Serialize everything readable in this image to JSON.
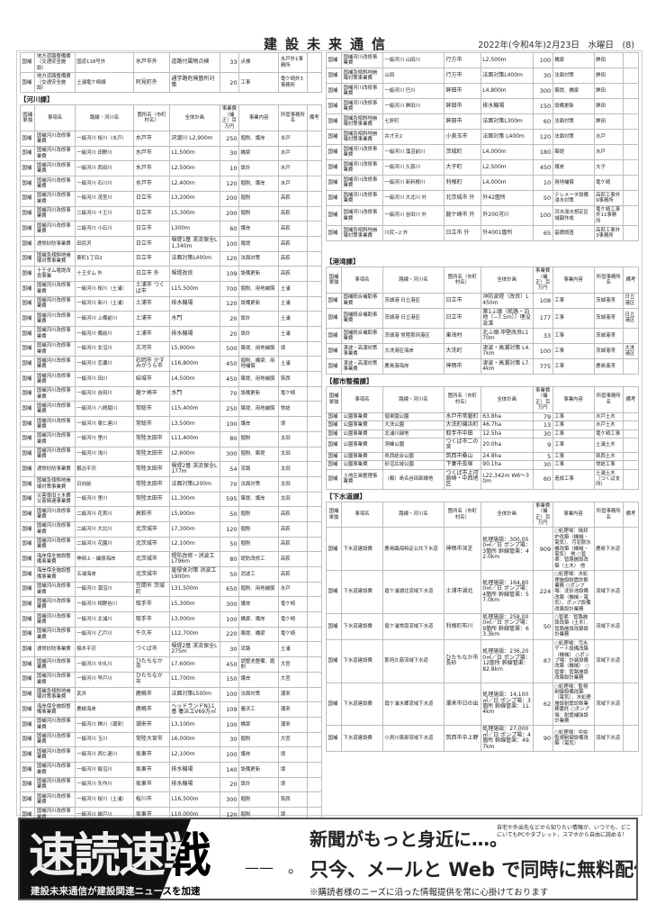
{
  "header": {
    "masthead": "建設未来通信",
    "dateline": "2022年(令和4年)2月23日　水曜日　(8)"
  },
  "columns": [
    "国補単独",
    "事項名",
    "路線・河川名",
    "箇所名（市町村名）",
    "全体計画",
    "事業費（補正）百万円",
    "事業内容",
    "所管事務所名",
    "備考"
  ],
  "left": {
    "road_rows": [
      [
        "国補",
        "地方道路整備費（交通安全施設）",
        "国道118号外",
        "水戸市外",
        "道路付属物点検",
        "33",
        "点検",
        "水戸外1事務所",
        ""
      ],
      [
        "国補",
        "地方道路整備費（交通安全施設）",
        "土浦竜ケ崎線",
        "阿見町外",
        "通学路危険箇所対策",
        "20",
        "工事",
        "竜ケ崎外3事務所",
        ""
      ]
    ],
    "river_title": "【河川課】",
    "river_rows": [
      [
        "国補",
        "国補河川改修事業費",
        "一級河川 桜川（水戸）",
        "水戸市",
        "沢渡川 L2,900m",
        "250",
        "掘削、護岸",
        "水戸",
        ""
      ],
      [
        "国補",
        "国補河川改修事業費",
        "一級河川 田野川",
        "水戸市",
        "L1,500m",
        "30",
        "橋梁",
        "水戸",
        ""
      ],
      [
        "国補",
        "国補河川改修事業費",
        "一級河川 西田川",
        "水戸市",
        "L2,500m",
        "10",
        "設計",
        "水戸",
        ""
      ],
      [
        "国補",
        "国補河川改修事業費",
        "一級河川 石川川",
        "水戸市",
        "L2,400m",
        "120",
        "掘削、護岸",
        "水戸",
        ""
      ],
      [
        "国補",
        "国補河川改修事業費",
        "一級河川 茂宮川",
        "日立市",
        "L3,200m",
        "200",
        "掘削",
        "高萩",
        ""
      ],
      [
        "国補",
        "国補河川改修事業費",
        "二級河川 十王川",
        "日立市",
        "L5,300m",
        "200",
        "掘削",
        "高萩",
        ""
      ],
      [
        "国補",
        "国補河川改修事業費",
        "二級河川 小石川",
        "日立市",
        "L300m",
        "60",
        "護岸",
        "高萩",
        ""
      ],
      [
        "国補",
        "通常砂防事業費",
        "田尻沢",
        "日立市",
        "堰堤1基 渓流保全L1,340m",
        "100",
        "堰堤",
        "高萩",
        ""
      ],
      [
        "国補",
        "国補急傾斜地崩壊対策事業費",
        "東町1丁目2",
        "日立市",
        "法面対策L400m",
        "120",
        "法面対策",
        "高萩",
        ""
      ],
      [
        "国補",
        "十王ダム堰堤改良事業",
        "十王ダム 外",
        "日立市 外",
        "堰堤改良",
        "109",
        "設備更新",
        "高萩",
        ""
      ],
      [
        "国補",
        "国補河川改修事業費",
        "一級河川 桜川（土浦）",
        "土浦市 つくば市",
        "L15,500m",
        "700",
        "掘削、用地補償",
        "土浦",
        ""
      ],
      [
        "国補",
        "国補河川改修事業費",
        "一級河川 新川（土浦）",
        "土浦市",
        "排水機場",
        "120",
        "設備更新",
        "土浦",
        ""
      ],
      [
        "国補",
        "国補河川改修事業費",
        "一級河川 上備前川",
        "土浦市",
        "水門",
        "20",
        "設計",
        "土浦",
        ""
      ],
      [
        "国補",
        "国補河川改修事業費",
        "一級河川 備前川",
        "土浦市",
        "排水機場",
        "20",
        "設計",
        "土浦",
        ""
      ],
      [
        "国補",
        "国補河川改修事業費",
        "一級河川 女沼川",
        "古河市",
        "L5,900m",
        "500",
        "築堤、用地補償",
        "境",
        ""
      ],
      [
        "国補",
        "国補河川改修事業費",
        "一級河川 恋瀬川",
        "石岡市 かすみがうら市",
        "L16,800m",
        "450",
        "掘削、橋梁、用地補償",
        "土浦",
        ""
      ],
      [
        "国補",
        "国補河川改修事業費",
        "一級河川 田川",
        "結城市",
        "L4,500m",
        "450",
        "築堤、用地補償",
        "筑西",
        ""
      ],
      [
        "国補",
        "国補河川改修事業費",
        "一級河川 谷田川",
        "龍ケ崎市",
        "水門",
        "70",
        "設備更新",
        "竜ケ崎",
        ""
      ],
      [
        "国補",
        "国補河川改修事業費",
        "一級河川 八間堀川",
        "常総市",
        "L15,400m",
        "250",
        "築堤、用地補償",
        "常総",
        ""
      ],
      [
        "国補",
        "国補河川改修事業費",
        "一級河川 東仁連川",
        "常総市",
        "L3,500m",
        "100",
        "護岸",
        "境",
        ""
      ],
      [
        "国補",
        "国補河川改修事業費",
        "一級河川 里川",
        "常陸太田市",
        "L11,400m",
        "80",
        "掘削",
        "太田",
        ""
      ],
      [
        "国補",
        "国補河川改修事業費",
        "一級河川 浅川",
        "常陸太田市",
        "L2,600m",
        "300",
        "掘削、築堤",
        "太田",
        ""
      ],
      [
        "国補",
        "通常砂防事業費",
        "鍛冶平沢",
        "常陸太田市",
        "堰堤2基 渓流保全L177m",
        "54",
        "流路",
        "太田",
        ""
      ],
      [
        "国補",
        "国補急傾斜地崩壊対策事業費",
        "日向前",
        "常陸太田市",
        "法面対策L200m",
        "70",
        "法面対策",
        "太田",
        ""
      ],
      [
        "国補",
        "災害復旧土木費 災害関連事業費",
        "一級河川 里川",
        "常陸太田市",
        "L1,300m",
        "595",
        "築堤、護岸",
        "太田",
        ""
      ],
      [
        "国補",
        "国補河川改修事業費",
        "二級河川 花貫川",
        "高萩市",
        "L5,900m",
        "50",
        "掘削",
        "高萩",
        ""
      ],
      [
        "国補",
        "国補河川改修事業費",
        "二級河川 大北川",
        "北茨城市",
        "L7,300m",
        "120",
        "掘削",
        "高萩",
        ""
      ],
      [
        "国補",
        "国補河川改修事業費",
        "二級河川 花園川",
        "北茨城市",
        "L2,100m",
        "50",
        "掘削",
        "高萩",
        ""
      ],
      [
        "国補",
        "海岸保全施設整備事業費",
        "神岡上・磯原海岸",
        "北茨城市",
        "堤防改修・消波工 L796m",
        "80",
        "堤防改修工",
        "高萩",
        ""
      ],
      [
        "国補",
        "海岸保全施設整備事業費",
        "五浦海岸",
        "北茨城市",
        "崖侵食対策 消波工L900m",
        "50",
        "消波工",
        "高萩",
        ""
      ],
      [
        "国補",
        "国補河川改修事業費",
        "一級河川 涸沼川",
        "笠間市 茨城町",
        "L31,500m",
        "650",
        "掘削、用地補償",
        "水戸",
        ""
      ],
      [
        "国補",
        "国補河川改修事業費",
        "一級河川 相野谷川",
        "取手市",
        "L5,300m",
        "300",
        "護岸",
        "竜ケ崎",
        ""
      ],
      [
        "国補",
        "国補河川改修事業費",
        "一級河川 北浦川",
        "取手市",
        "L3,000m",
        "100",
        "橋梁、護岸",
        "竜ケ崎",
        ""
      ],
      [
        "国補",
        "国補河川改修事業費",
        "一級河川 乙戸川",
        "牛久市",
        "L12,700m",
        "220",
        "築堤、橋梁",
        "竜ケ崎",
        ""
      ],
      [
        "国補",
        "通常砂防事業費",
        "稲木平沢",
        "つくば市",
        "堰堤2基 渓流保全L275m",
        "30",
        "流路",
        "土浦",
        ""
      ],
      [
        "国補",
        "国補河川改修事業費",
        "一級河川 中丸川",
        "ひたちなか市",
        "L7,600m",
        "450",
        "調整池整備、掘削",
        "大宮",
        ""
      ],
      [
        "国補",
        "国補河川改修事業費",
        "一級河川 早戸川",
        "ひたちなか市",
        "L1,700m",
        "150",
        "護岸",
        "大宮",
        ""
      ],
      [
        "国補",
        "国補急傾斜地崩壊対策事業費",
        "武井",
        "鹿嶋市",
        "法面対策L500m",
        "100",
        "法面対策",
        "潮来",
        ""
      ],
      [
        "国補",
        "海岸保全施設整備事業費",
        "鹿嶋海岸",
        "鹿嶋市",
        "ヘッドランドN11基 養浜工V69万㎥",
        "109",
        "養浜工",
        "潮来",
        ""
      ],
      [
        "国補",
        "国補河川改修事業費",
        "一級河川 鉾川（潮来）",
        "潮来市",
        "L3,100m",
        "100",
        "橋梁",
        "潮来",
        ""
      ],
      [
        "国補",
        "国補河川改修事業費",
        "一級河川 玉川",
        "常陸大宮市",
        "L6,000m",
        "30",
        "掘削",
        "大宮",
        ""
      ],
      [
        "国補",
        "国補河川改修事業費",
        "一級河川 西仁連川",
        "坂東市",
        "L2,100m",
        "100",
        "護岸",
        "境",
        ""
      ],
      [
        "国補",
        "国補河川改修事業費",
        "一級河川 飯沼川",
        "坂東市",
        "排水機場",
        "140",
        "設備更新",
        "境",
        ""
      ],
      [
        "国補",
        "国補河川改修事業費",
        "一級河川 矢作川",
        "坂東市",
        "排水機場",
        "20",
        "設計",
        "境",
        ""
      ],
      [
        "国補",
        "国補河川改修事業費",
        "一級河川 桜川（土浦）",
        "桜川市",
        "L16,500m",
        "300",
        "掘削",
        "筑西",
        ""
      ],
      [
        "国補",
        "国補河川改修事業費",
        "一級河川 鵠戸川",
        "坂東市",
        "L10,000m",
        "120",
        "掘削",
        "境",
        ""
      ]
    ]
  },
  "right": {
    "river_rows": [
      [
        "国補",
        "国補河川改修事業費",
        "一級河川 山田川",
        "行方市",
        "L2,500m",
        "100",
        "橋梁",
        "鉾田",
        ""
      ],
      [
        "国補",
        "国補急傾斜地崩壊対策事業費",
        "山田",
        "行方市",
        "法面対策L400m",
        "30",
        "法面対策",
        "鉾田",
        ""
      ],
      [
        "国補",
        "国補河川改修事業費",
        "一級河川 巴川",
        "鉾田市",
        "L4,800m",
        "300",
        "築堤、橋梁",
        "鉾田",
        ""
      ],
      [
        "国補",
        "国補河川改修事業費",
        "一級河川 鉾田川",
        "鉾田市",
        "排水機場",
        "150",
        "設備更新",
        "鉾田",
        ""
      ],
      [
        "国補",
        "国補急傾斜地崩壊対策事業費",
        "七軒町",
        "鉾田市",
        "法面対策L300m",
        "60",
        "法面対策",
        "鉾田",
        ""
      ],
      [
        "国補",
        "国補急傾斜地崩壊対策事業費",
        "弁才天2",
        "小美玉市",
        "法面対策 L400m",
        "120",
        "法面対策",
        "水戸",
        ""
      ],
      [
        "国補",
        "国補河川改修事業費",
        "一級河川 藻沼前川",
        "茨城町",
        "L4,000m",
        "180",
        "築堤",
        "水戸",
        ""
      ],
      [
        "国補",
        "国補河川改修事業費",
        "一級河川 久慈川",
        "大子町",
        "L2,500m",
        "450",
        "護岸",
        "大子",
        ""
      ],
      [
        "国補",
        "国補河川改修事業費",
        "一級河川 新利根川",
        "利根町",
        "L4,000m",
        "10",
        "用地補償",
        "竜ケ崎",
        ""
      ],
      [
        "国補",
        "国補河川改修事業費",
        "一級河川 大北川 外",
        "北茨城市 外",
        "外42箇所",
        "50",
        "テレメータ設備 浸水対策",
        "高萩工事外9事務所",
        ""
      ],
      [
        "国補",
        "国補河川改修事業費",
        "一級河川 谷田川 外",
        "龍ケ崎市 外",
        "外200河川",
        "100",
        "洪水浸水想定区域図作成",
        "竜ケ崎工事外11事務所",
        ""
      ],
      [
        "国補",
        "国補急傾斜地崩壊対策事業費",
        "川尻−2 外",
        "日立市 外",
        "外4001箇所",
        "65",
        "基礎調査",
        "高萩工事外3事務所",
        ""
      ]
    ],
    "port_title": "【港湾課】",
    "port_rows": [
      [
        "国補",
        "国補統合補助事業費",
        "茨城港 日立港区",
        "日立市",
        "沖防波堤（改良）L450m",
        "108",
        "工事",
        "茨城港湾",
        "日立港区"
      ],
      [
        "国補",
        "国補統合補助事業費",
        "茨城港 日立港区",
        "日立市",
        "第1ふ頭（航路・泊地（−7.5m））埋没浚渫",
        "177",
        "工事",
        "茨城港湾",
        "日立港区"
      ],
      [
        "国補",
        "国補統合補助事業費",
        "茨城港 常陸那珂港区",
        "東海村",
        "北ふ頭 岸壁改良L170m",
        "33",
        "工事",
        "茨城港湾",
        ""
      ],
      [
        "国補",
        "津波・高潮対策事業費",
        "大洗港区海岸",
        "大洗町",
        "津波・高潮対策 L4.7km",
        "100",
        "工事",
        "茨城港湾",
        "大洗港区"
      ],
      [
        "国補",
        "津波・高潮対策事業費",
        "鹿島港海岸",
        "神栖市",
        "津波・高潮対策 L7.4km",
        "775",
        "工事",
        "鹿島港湾",
        ""
      ]
    ],
    "city_title": "【都市整備課】",
    "city_rows": [
      [
        "国補",
        "公園事業費",
        "偕楽園公園",
        "水戸市常磐町",
        "63.8ha",
        "79",
        "工事",
        "水戸土木",
        ""
      ],
      [
        "国補",
        "公園事業費",
        "大洗公園",
        "大洗町磯浜町",
        "46.7ha",
        "13",
        "工事",
        "水戸土木",
        ""
      ],
      [
        "国補",
        "公園事業費",
        "北浦川緑地",
        "取手市中田",
        "12.5ha",
        "30",
        "工事",
        "竜ケ崎工事",
        ""
      ],
      [
        "国補",
        "公園事業費",
        "洞峰公園",
        "つくば市二の宮",
        "20.0ha",
        "9",
        "工事",
        "土浦土木",
        ""
      ],
      [
        "国補",
        "公園事業費",
        "県西総合公園",
        "筑西市桑山",
        "24.8ha",
        "5",
        "工事",
        "筑西土木",
        ""
      ],
      [
        "国補",
        "公園事業費",
        "砂沼広域公園",
        "下妻市長塚",
        "90.1ha",
        "30",
        "工事",
        "常総工事",
        ""
      ],
      [
        "国補",
        "土地区画整理事業費",
        "（都）島名谷田部線他",
        "つくば市上河原崎・中西地区",
        "L22,342m W6〜30m",
        "60",
        "造成工事",
        "土浦土木（つくば支所）",
        ""
      ]
    ],
    "sewer_title": "【下水道課】",
    "sewer_rows": [
      [
        "国補",
        "下水道建設費",
        "鹿島臨海特定公共下水道",
        "神栖市深芝",
        "処理施設：300,000㎥／日 ポンプ場：3箇所 幹線管渠：42.0km",
        "909",
        "○処理場：焼却炉改築（機械・電気）、汚泥脱水機改築（機械・電気） 他 ○管渠：管路施設改築（土木） 他",
        "鹿島下水道",
        ""
      ],
      [
        "国補",
        "下水道建設費",
        "霞ケ浦湖北流域下水道",
        "土浦市湖北",
        "処理施設：164,800㎥／日 ポンプ場：4箇所 幹線管渠：57.0km",
        "224",
        "○処理場：水処理施設耐震診断業務 ○ポンプ場：沈砂池設備改築（機械・電気）、ポンプ設備改築設計業務",
        "流域下水道",
        ""
      ],
      [
        "国補",
        "下水道建設費",
        "霞ケ浦常南流域下水道",
        "利根町布川",
        "処理施設：258,000㎥／日 ポンプ場：9箇所 幹線管渠：63.3km",
        "50",
        "○管渠：管路施設改築（土木）、管路施設改築設計業務",
        "流域下水道",
        ""
      ],
      [
        "国補",
        "下水道建設費",
        "那珂久慈流域下水道",
        "ひたちなか市長砂",
        "処理施設：236,200㎥／日 ポンプ場：12箇所 幹線管渠：82.8km",
        "87",
        "○処理場：汚水ゲート設備改築（機械） ○ポンプ場：計装設備改築（機械） ○管渠：管路施設改築設計業務",
        "流域下水道",
        ""
      ],
      [
        "国補",
        "下水道建設費",
        "霞ケ浦水郷流域下水道",
        "潮来市日の出",
        "処理施設：14,100㎥／日 ポンプ場：3箇所 幹線管渠：11.4km",
        "62",
        "○処理場：監視制御設備改築（電気）、水処理施設耐震診断業務委託 ○ポンプ場：耐震補強設計業務",
        "流域下水道",
        ""
      ],
      [
        "国補",
        "下水道建設費",
        "小貝川東部流域下水道",
        "筑西市中上野",
        "処理施設：27,000㎥／日 ポンプ場：4箇所 幹線管渠：49.7km",
        "90",
        "○処理場：中央監視制御設備改築（電気）",
        "流域下水道",
        ""
      ]
    ]
  },
  "ad": {
    "logo": "速読速戦",
    "dash": "——　。",
    "tagline": "建設未来通信が建設関連ニュースを加速",
    "headline": "新聞がもっと身近に…。",
    "note": "自宅や外出先などから知りたい情報が、いつでも、どこにいてもPCやタブレット、スマホから自由に読める！",
    "headline2": "只今、メールと Web で同時に無料配信",
    "footer": "※購読者様のニーズに沿った情報提供を常に心掛けております"
  }
}
